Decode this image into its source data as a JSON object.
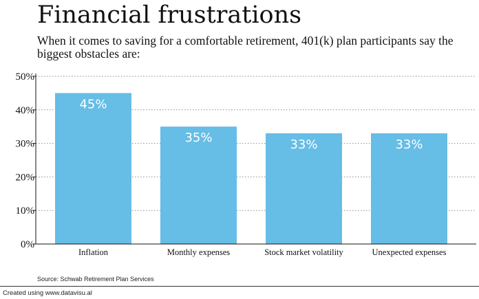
{
  "header": {
    "title": "Financial frustrations",
    "subtitle": "When it comes to saving for a comfortable retirement, 401(k) plan participants say the biggest obstacles are:"
  },
  "chart_data": {
    "type": "bar",
    "title": "Financial frustrations",
    "subtitle": "When it comes to saving for a comfortable retirement, 401(k) plan participants say the biggest obstacles are:",
    "categories": [
      "Inflation",
      "Monthly expenses",
      "Stock market volatility",
      "Unexpected expenses"
    ],
    "values": [
      45,
      35,
      33,
      33
    ],
    "value_labels": [
      "45%",
      "35%",
      "33%",
      "33%"
    ],
    "ylim": [
      0,
      50
    ],
    "yticks": [
      0,
      10,
      20,
      30,
      40,
      50
    ],
    "ytick_labels": [
      "0%",
      "10%",
      "20%",
      "30%",
      "40%",
      "50%"
    ],
    "xlabel": "",
    "ylabel": "",
    "grid": "horizontal dotted",
    "bar_color": "#66bde6"
  },
  "footer": {
    "source": "Source: Schwab Retirement Plan Services",
    "credit": "Created using www.datavisu.al"
  }
}
